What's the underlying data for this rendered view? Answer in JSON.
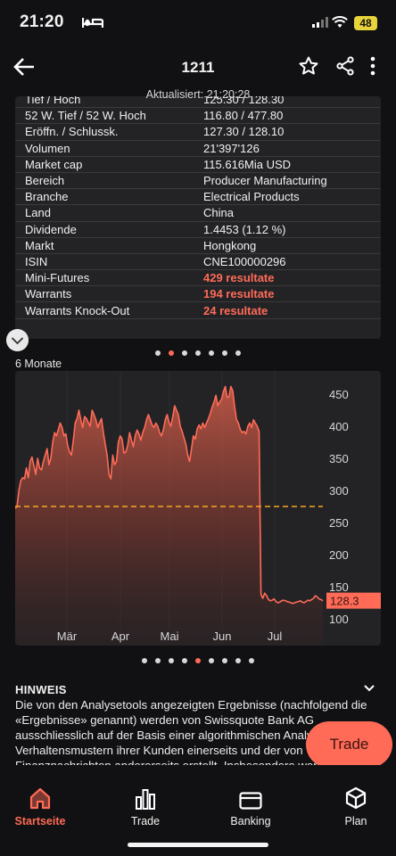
{
  "status": {
    "time": "21:20",
    "battery": "48"
  },
  "header": {
    "title": "1211",
    "updated": "Aktualisiert: 21:20:28"
  },
  "info_rows": [
    {
      "k": "Tief / Hoch",
      "v": "125.30 / 128.30",
      "red": false
    },
    {
      "k": "52 W. Tief / 52 W. Hoch",
      "v": "116.80 / 477.80",
      "red": false
    },
    {
      "k": "Eröffn. / Schlussk.",
      "v": "127.30 / 128.10",
      "red": false
    },
    {
      "k": "Volumen",
      "v": "21'397'126",
      "red": false
    },
    {
      "k": "Market cap",
      "v": "115.616Mia USD",
      "red": false
    },
    {
      "k": "Bereich",
      "v": "Producer Manufacturing",
      "red": false
    },
    {
      "k": "Branche",
      "v": "Electrical Products",
      "red": false
    },
    {
      "k": "Land",
      "v": "China",
      "red": false
    },
    {
      "k": "Dividende",
      "v": "1.4453 (1.12 %)",
      "red": false
    },
    {
      "k": "Markt",
      "v": "Hongkong",
      "red": false
    },
    {
      "k": "ISIN",
      "v": "CNE100000296",
      "red": false
    },
    {
      "k": "Mini-Futures",
      "v": "429 resultate",
      "red": true
    },
    {
      "k": "Warrants",
      "v": "194 resultate",
      "red": true
    },
    {
      "k": "Warrants Knock-Out",
      "v": "24 resultate",
      "red": true
    }
  ],
  "pager1": {
    "count": 7,
    "active": 1
  },
  "pager2": {
    "count": 9,
    "active": 4
  },
  "chart_label": "6 Monate",
  "chart_data": {
    "type": "area",
    "x_ticks": [
      "Mär",
      "Apr",
      "Mai",
      "Jun",
      "Jul"
    ],
    "y_ticks": [
      100,
      150,
      200,
      250,
      300,
      350,
      400,
      450
    ],
    "ylim": [
      90,
      470
    ],
    "current_price_label": "128.3",
    "reference_line": 275,
    "values": [
      272,
      275,
      300,
      315,
      320,
      318,
      335,
      320,
      345,
      352,
      338,
      325,
      350,
      335,
      332,
      345,
      355,
      365,
      340,
      350,
      375,
      390,
      385,
      395,
      405,
      398,
      385,
      388,
      370,
      360,
      355,
      378,
      405,
      412,
      425,
      410,
      398,
      415,
      412,
      406,
      400,
      425,
      418,
      410,
      398,
      406,
      412,
      390,
      372,
      355,
      325,
      318,
      355,
      340,
      345,
      375,
      385,
      380,
      358,
      360,
      370,
      390,
      378,
      368,
      385,
      394,
      388,
      378,
      390,
      398,
      410,
      418,
      410,
      402,
      398,
      405,
      400,
      390,
      385,
      395,
      410,
      418,
      406,
      400,
      415,
      432,
      425,
      418,
      400,
      392,
      382,
      372,
      355,
      345,
      365,
      385,
      380,
      396,
      402,
      396,
      405,
      398,
      405,
      412,
      420,
      430,
      438,
      448,
      432,
      438,
      442,
      454,
      462,
      445,
      446,
      462,
      455,
      430,
      410,
      405,
      395,
      390,
      392,
      388,
      400,
      405,
      398,
      410,
      405,
      400,
      392,
      138,
      132,
      140,
      136,
      130,
      128,
      129,
      131,
      127,
      125,
      126,
      128,
      129,
      128,
      127,
      126,
      125,
      124,
      125,
      126,
      127,
      128,
      126,
      125,
      127,
      129,
      128,
      130,
      132,
      136,
      134,
      131,
      130,
      128
    ]
  },
  "hinweis": {
    "title": "HINWEIS",
    "text": "Die von den Analysetools angezeigten Ergebnisse (nachfolgend die «Ergebnisse» genannt) werden von Swissquote Bank AG ausschliesslich auf der Basis einer algorithmischen Analyse von Verhaltensmustern ihrer Kunden einerseits und der von Finanznachrichten andererseits erstellt. Insbesondere werden keine Fundamentaldaten des Unternehmens über die in den Nachrichten"
  },
  "trade_button": "Trade",
  "nav": [
    {
      "label": "Startseite",
      "icon": "home-icon",
      "active": true
    },
    {
      "label": "Trade",
      "icon": "bar-chart-icon",
      "active": false
    },
    {
      "label": "Banking",
      "icon": "card-icon",
      "active": false
    },
    {
      "label": "Plan",
      "icon": "cube-icon",
      "active": false
    }
  ],
  "colors": {
    "accent": "#ff6b57",
    "card": "#232326",
    "background": "#111113",
    "reference_line": "#f5a623"
  }
}
